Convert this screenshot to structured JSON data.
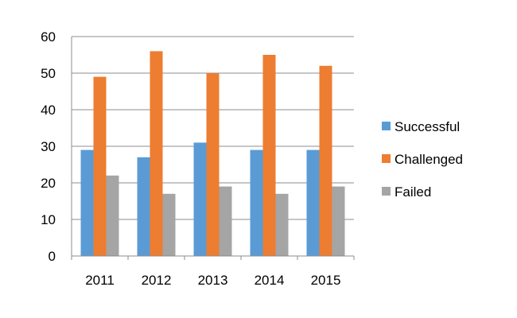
{
  "chart_data": {
    "type": "bar",
    "title": "",
    "xlabel": "",
    "ylabel": "",
    "categories": [
      "2011",
      "2012",
      "2013",
      "2014",
      "2015"
    ],
    "series": [
      {
        "name": "Successful",
        "color": "#5B9BD5",
        "values": [
          29,
          27,
          31,
          29,
          29
        ]
      },
      {
        "name": "Challenged",
        "color": "#ED7D31",
        "values": [
          49,
          56,
          50,
          55,
          52
        ]
      },
      {
        "name": "Failed",
        "color": "#A5A5A5",
        "values": [
          22,
          17,
          19,
          17,
          19
        ]
      }
    ],
    "ylim": [
      0,
      60
    ],
    "yticks": [
      0,
      10,
      20,
      30,
      40,
      50,
      60
    ],
    "grid": true,
    "legend_position": "right"
  }
}
